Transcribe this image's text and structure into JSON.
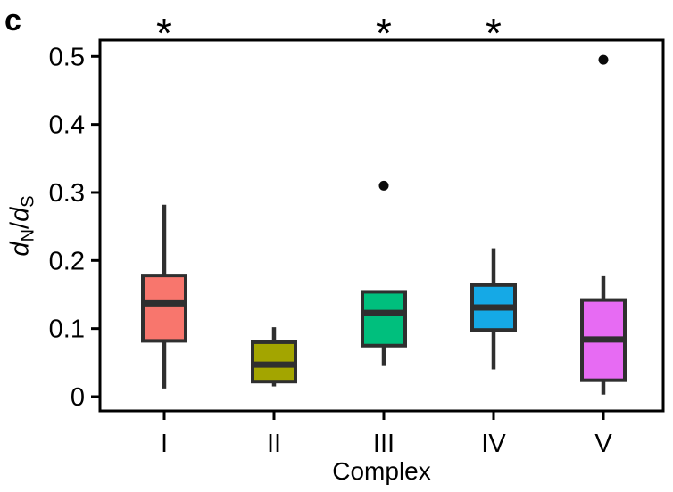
{
  "panel_label": "c",
  "chart_data": {
    "type": "box",
    "title": "",
    "xlabel": "Complex",
    "ylabel": "dN/dS",
    "ylabel_parts": {
      "num_base": "d",
      "num_sub": "N",
      "divider": "/",
      "den_base": "d",
      "den_sub": "S"
    },
    "categories": [
      "I",
      "II",
      "III",
      "IV",
      "V"
    ],
    "yticks": [
      {
        "value": 0,
        "label": "0"
      },
      {
        "value": 0.1,
        "label": "0.1"
      },
      {
        "value": 0.2,
        "label": "0.2"
      },
      {
        "value": 0.3,
        "label": "0.3"
      },
      {
        "value": 0.4,
        "label": "0.4"
      },
      {
        "value": 0.5,
        "label": "0.5"
      }
    ],
    "ylim": [
      -0.02,
      0.52
    ],
    "grid": false,
    "legend": "none",
    "series": [
      {
        "category": "I",
        "color": "#F8766D",
        "whisker_low": 0.012,
        "q1": 0.082,
        "median": 0.137,
        "q3": 0.178,
        "whisker_high": 0.282,
        "outliers": [],
        "significance": "*"
      },
      {
        "category": "II",
        "color": "#A3A500",
        "whisker_low": 0.015,
        "q1": 0.022,
        "median": 0.047,
        "q3": 0.08,
        "whisker_high": 0.102,
        "outliers": [],
        "significance": ""
      },
      {
        "category": "III",
        "color": "#00BF7D",
        "whisker_low": 0.045,
        "q1": 0.075,
        "median": 0.123,
        "q3": 0.154,
        "whisker_high": 0.154,
        "outliers": [
          0.31
        ],
        "significance": "*"
      },
      {
        "category": "IV",
        "color": "#15A9E6",
        "whisker_low": 0.04,
        "q1": 0.098,
        "median": 0.131,
        "q3": 0.164,
        "whisker_high": 0.218,
        "outliers": [],
        "significance": "*"
      },
      {
        "category": "V",
        "color": "#E76BF3",
        "whisker_low": 0.003,
        "q1": 0.024,
        "median": 0.084,
        "q3": 0.142,
        "whisker_high": 0.177,
        "outliers": [
          0.495
        ],
        "significance": ""
      }
    ],
    "box_stroke": "#2f2f2f",
    "outlier_color": "#0a0a0a",
    "axis_color": "#000000"
  }
}
